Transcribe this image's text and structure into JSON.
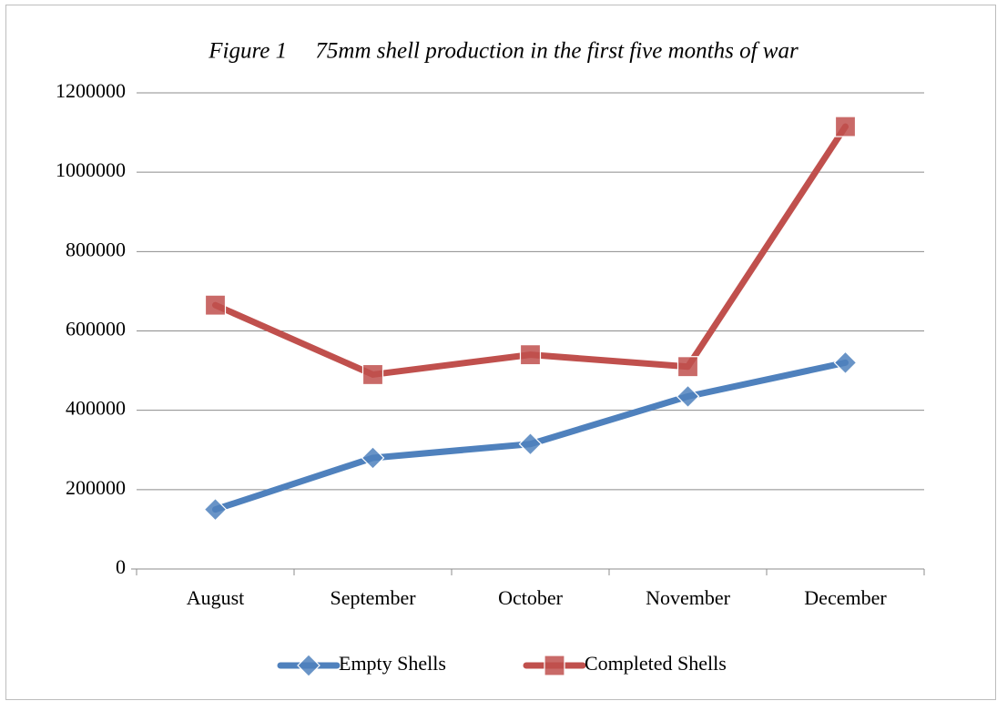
{
  "chart_data": {
    "type": "line",
    "title": "Figure 1     75mm shell production in the first five months of war",
    "categories": [
      "August",
      "September",
      "October",
      "November",
      "December"
    ],
    "series": [
      {
        "name": "Empty Shells",
        "color": "#4f81bd",
        "marker": "diamond",
        "values": [
          150000,
          280000,
          315000,
          435000,
          520000
        ]
      },
      {
        "name": "Completed Shells",
        "color": "#c0504d",
        "marker": "square",
        "values": [
          665000,
          490000,
          540000,
          510000,
          1115000
        ]
      }
    ],
    "ylim": [
      0,
      1200000
    ],
    "yticks": [
      0,
      200000,
      400000,
      600000,
      800000,
      1000000,
      1200000
    ],
    "grid": true,
    "legend": "bottom"
  }
}
